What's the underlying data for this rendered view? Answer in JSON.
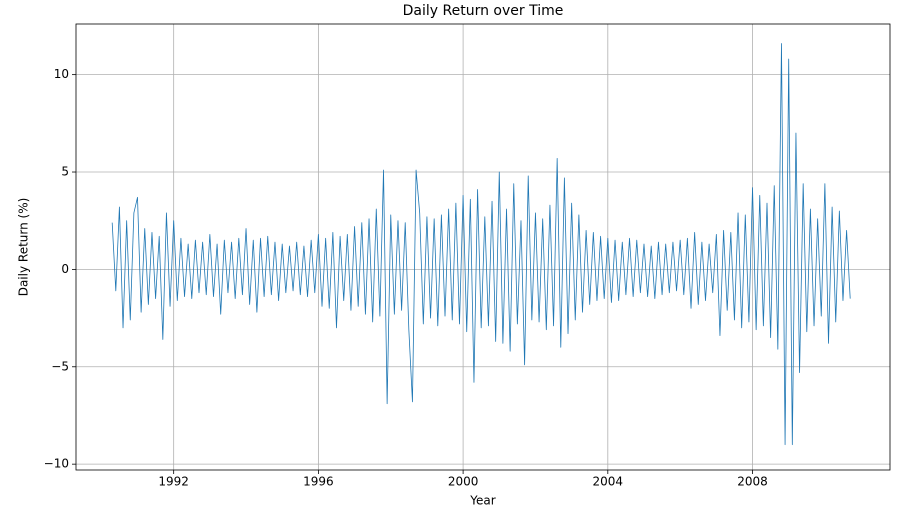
{
  "chart_data": {
    "type": "line",
    "title": "Daily Return over Time",
    "xlabel": "Year",
    "ylabel": "Daily Return (%)",
    "x": [
      1990.3,
      1990.4,
      1990.5,
      1990.6,
      1990.7,
      1990.8,
      1990.9,
      1991.0,
      1991.1,
      1991.2,
      1991.3,
      1991.4,
      1991.5,
      1991.6,
      1991.7,
      1991.8,
      1991.9,
      1992.0,
      1992.1,
      1992.2,
      1992.3,
      1992.4,
      1992.5,
      1992.6,
      1992.7,
      1992.8,
      1992.9,
      1993.0,
      1993.1,
      1993.2,
      1993.3,
      1993.4,
      1993.5,
      1993.6,
      1993.7,
      1993.8,
      1993.9,
      1994.0,
      1994.1,
      1994.2,
      1994.3,
      1994.4,
      1994.5,
      1994.6,
      1994.7,
      1994.8,
      1994.9,
      1995.0,
      1995.1,
      1995.2,
      1995.3,
      1995.4,
      1995.5,
      1995.6,
      1995.7,
      1995.8,
      1995.9,
      1996.0,
      1996.1,
      1996.2,
      1996.3,
      1996.4,
      1996.5,
      1996.6,
      1996.7,
      1996.8,
      1996.9,
      1997.0,
      1997.1,
      1997.2,
      1997.3,
      1997.4,
      1997.5,
      1997.6,
      1997.7,
      1997.8,
      1997.9,
      1998.0,
      1998.1,
      1998.2,
      1998.3,
      1998.4,
      1998.5,
      1998.6,
      1998.7,
      1998.8,
      1998.9,
      1999.0,
      1999.1,
      1999.2,
      1999.3,
      1999.4,
      1999.5,
      1999.6,
      1999.7,
      1999.8,
      1999.9,
      2000.0,
      2000.1,
      2000.2,
      2000.3,
      2000.4,
      2000.5,
      2000.6,
      2000.7,
      2000.8,
      2000.9,
      2001.0,
      2001.1,
      2001.2,
      2001.3,
      2001.4,
      2001.5,
      2001.6,
      2001.7,
      2001.8,
      2001.9,
      2002.0,
      2002.1,
      2002.2,
      2002.3,
      2002.4,
      2002.5,
      2002.6,
      2002.7,
      2002.8,
      2002.9,
      2003.0,
      2003.1,
      2003.2,
      2003.3,
      2003.4,
      2003.5,
      2003.6,
      2003.7,
      2003.8,
      2003.9,
      2004.0,
      2004.1,
      2004.2,
      2004.3,
      2004.4,
      2004.5,
      2004.6,
      2004.7,
      2004.8,
      2004.9,
      2005.0,
      2005.1,
      2005.2,
      2005.3,
      2005.4,
      2005.5,
      2005.6,
      2005.7,
      2005.8,
      2005.9,
      2006.0,
      2006.1,
      2006.2,
      2006.3,
      2006.4,
      2006.5,
      2006.6,
      2006.7,
      2006.8,
      2006.9,
      2007.0,
      2007.1,
      2007.2,
      2007.3,
      2007.4,
      2007.5,
      2007.6,
      2007.7,
      2007.8,
      2007.9,
      2008.0,
      2008.1,
      2008.2,
      2008.3,
      2008.4,
      2008.5,
      2008.6,
      2008.7,
      2008.8,
      2008.9,
      2009.0,
      2009.1,
      2009.2,
      2009.3,
      2009.4,
      2009.5,
      2009.6,
      2009.7,
      2009.8,
      2009.9,
      2010.0,
      2010.1,
      2010.2,
      2010.3,
      2010.4,
      2010.5,
      2010.6,
      2010.7
    ],
    "series": [
      {
        "name": "Daily Return",
        "color": "#1f77b4",
        "values": [
          2.4,
          -1.1,
          3.2,
          -3.0,
          2.5,
          -2.6,
          2.9,
          3.7,
          -2.2,
          2.1,
          -1.8,
          1.9,
          -1.5,
          1.7,
          -3.6,
          2.9,
          -1.9,
          2.5,
          -1.6,
          1.6,
          -1.4,
          1.3,
          -1.5,
          1.5,
          -1.2,
          1.4,
          -1.3,
          1.8,
          -1.4,
          1.3,
          -2.3,
          1.5,
          -1.2,
          1.4,
          -1.5,
          1.6,
          -1.3,
          2.1,
          -1.8,
          1.5,
          -2.2,
          1.6,
          -1.4,
          1.7,
          -1.3,
          1.4,
          -1.6,
          1.3,
          -1.2,
          1.2,
          -1.1,
          1.4,
          -1.3,
          1.2,
          -1.4,
          1.5,
          -1.2,
          1.8,
          -1.9,
          1.6,
          -2.0,
          1.9,
          -3.0,
          1.7,
          -1.6,
          1.8,
          -2.1,
          2.2,
          -1.9,
          2.4,
          -2.3,
          2.6,
          -2.7,
          3.1,
          -2.4,
          5.1,
          -6.9,
          2.8,
          -2.3,
          2.5,
          -2.1,
          2.4,
          -3.1,
          -6.8,
          5.1,
          2.9,
          -2.8,
          2.7,
          -2.5,
          2.6,
          -2.9,
          2.8,
          -2.4,
          3.1,
          -2.6,
          3.4,
          -2.8,
          3.8,
          -3.2,
          3.6,
          -5.8,
          4.1,
          -3.0,
          2.7,
          -2.9,
          3.5,
          -3.7,
          5.0,
          -3.8,
          3.1,
          -4.2,
          4.4,
          -2.8,
          2.5,
          -4.9,
          4.8,
          -2.6,
          2.9,
          -2.7,
          2.6,
          -3.1,
          3.3,
          -2.9,
          5.7,
          -4.0,
          4.7,
          -3.3,
          3.4,
          -2.6,
          2.8,
          -2.2,
          2.0,
          -1.8,
          1.9,
          -1.6,
          1.7,
          -1.5,
          1.6,
          -1.7,
          1.5,
          -1.6,
          1.4,
          -1.3,
          1.6,
          -1.4,
          1.5,
          -1.2,
          1.3,
          -1.4,
          1.2,
          -1.5,
          1.4,
          -1.3,
          1.3,
          -1.2,
          1.4,
          -1.1,
          1.5,
          -1.3,
          1.6,
          -2.0,
          1.9,
          -1.8,
          1.4,
          -1.6,
          1.3,
          -1.2,
          1.8,
          -3.4,
          2.0,
          -2.1,
          1.9,
          -2.6,
          2.9,
          -3.0,
          2.8,
          -2.7,
          4.2,
          -3.1,
          3.8,
          -2.9,
          3.4,
          -3.5,
          4.3,
          -4.1,
          11.6,
          -9.0,
          10.8,
          -9.0,
          7.0,
          -5.3,
          4.4,
          -3.2,
          3.1,
          -2.9,
          2.6,
          -2.4,
          4.4,
          -3.8,
          3.2,
          -2.7,
          3.0,
          -1.6,
          2.0,
          -1.5
        ]
      }
    ],
    "xlim": [
      1989.3,
      2011.8
    ],
    "xticks": [
      1992,
      1996,
      2000,
      2004,
      2008
    ],
    "ylim": [
      -10.3,
      12.6
    ],
    "yticks": [
      {
        "value": -10,
        "label": "−10"
      },
      {
        "value": -5,
        "label": "−5"
      },
      0,
      5,
      10
    ],
    "grid": true
  }
}
